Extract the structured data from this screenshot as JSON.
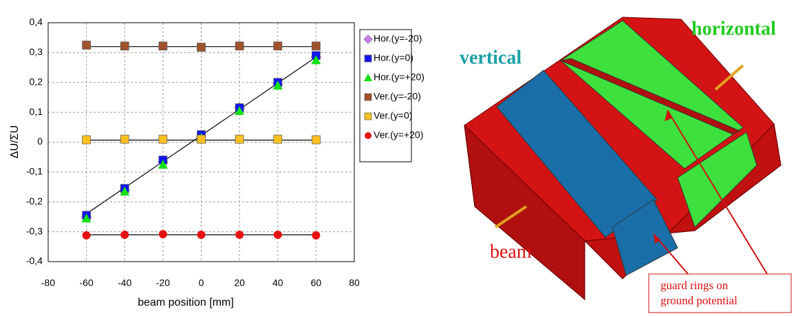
{
  "chart_data": {
    "type": "line",
    "x_label": "beam position [mm]",
    "y_label": "ΔU/ΣU",
    "x": [
      -60,
      -40,
      -20,
      0,
      20,
      40,
      60
    ],
    "xlim": [
      -80,
      80
    ],
    "xticks": [
      -80,
      -60,
      -40,
      -20,
      0,
      20,
      40,
      60,
      80
    ],
    "ylim": [
      -0.4,
      0.4
    ],
    "yticks": [
      {
        "value": -0.4,
        "label": "-0,4"
      },
      {
        "value": -0.3,
        "label": "-0,3"
      },
      {
        "value": -0.2,
        "label": "-0,2"
      },
      {
        "value": -0.1,
        "label": "-0,1"
      },
      0,
      {
        "value": 0.1,
        "label": "0,1"
      },
      {
        "value": 0.2,
        "label": "0,2"
      },
      {
        "value": 0.3,
        "label": "0,3"
      },
      {
        "value": 0.4,
        "label": "0,4"
      }
    ],
    "grid": true,
    "legend": "right",
    "series": [
      {
        "name": "Hor.(y=-20)",
        "color": "#c77fe0",
        "marker": "diamond",
        "values": [
          -0.25,
          -0.16,
          -0.065,
          0.02,
          0.115,
          0.195,
          0.285
        ]
      },
      {
        "name": "Hor.(y=0)",
        "color": "#1414f0",
        "marker": "square",
        "values": [
          -0.245,
          -0.155,
          -0.06,
          0.025,
          0.115,
          0.2,
          0.29
        ]
      },
      {
        "name": "Hor.(y=+20)",
        "color": "#14e014",
        "marker": "triangle",
        "values": [
          -0.255,
          -0.165,
          -0.075,
          0.015,
          0.105,
          0.19,
          0.275
        ]
      },
      {
        "name": "Ver.(y=-20)",
        "color": "#a0522d",
        "marker": "square",
        "values": [
          0.325,
          0.322,
          0.322,
          0.318,
          0.322,
          0.322,
          0.322
        ]
      },
      {
        "name": "Ver.(y=0)",
        "color": "#ffc020",
        "marker": "square",
        "values": [
          0.008,
          0.01,
          0.01,
          0.01,
          0.01,
          0.01,
          0.008
        ]
      },
      {
        "name": "Ver.(y=+20)",
        "color": "#e81010",
        "marker": "circle",
        "values": [
          -0.312,
          -0.31,
          -0.308,
          -0.31,
          -0.31,
          -0.31,
          -0.312
        ]
      }
    ],
    "fit_lines": [
      {
        "x": [
          -60,
          60
        ],
        "y": [
          -0.24,
          0.285
        ]
      },
      {
        "x": [
          -60,
          60
        ],
        "y": [
          0.32,
          0.32
        ]
      },
      {
        "x": [
          -60,
          60
        ],
        "y": [
          0.007,
          0.007
        ]
      },
      {
        "x": [
          -60,
          60
        ],
        "y": [
          -0.31,
          -0.31
        ]
      }
    ]
  },
  "diagram": {
    "labels": {
      "vertical": "vertical",
      "horizontal": "horizontal",
      "beam": "beam",
      "guard_rings": [
        "guard rings on",
        "ground potential"
      ]
    }
  }
}
